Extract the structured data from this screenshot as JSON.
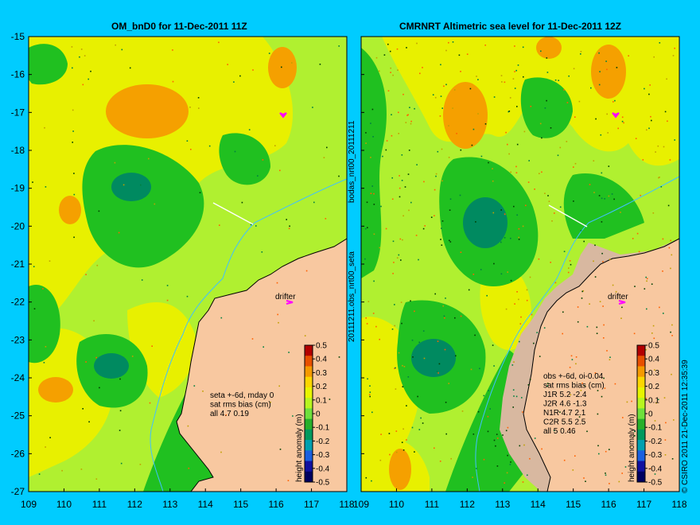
{
  "panels": [
    {
      "title": "OM_bnD0 for 11-Dec-2011 11Z",
      "annotation_lines": [
        "seta +-6d, mday 0",
        "sat rms bias (cm)",
        "all 4.7 0.19"
      ],
      "drifter_label": "drifter"
    },
    {
      "title": "CMRNRT Altimetric sea level  for 11-Dec-2011 12Z",
      "annotation_lines": [
        "obs +-6d, oi-0.04",
        "sat rms bias (cm)",
        "J1R  5.2 -2.4",
        "J2R  4.6 -1.3",
        "N1R  4.7 2.1",
        "C2R  5.5 2.5",
        "all 5 0.46"
      ],
      "drifter_label": "drifter"
    }
  ],
  "side_labels": {
    "middle_top": "bodas_nrt00_20111211",
    "middle_bottom": "20111211.obs_nrt00_seta",
    "right": "© CSIRO 2011  21-Dec-2011 12:35:39"
  },
  "axes": {
    "lat_ticks": [
      "-15",
      "-16",
      "-17",
      "-18",
      "-19",
      "-20",
      "-21",
      "-22",
      "-23",
      "-24",
      "-25",
      "-26",
      "-27"
    ],
    "lon_ticks": [
      "109",
      "110",
      "111",
      "112",
      "113",
      "114",
      "115",
      "116",
      "117",
      "118"
    ]
  },
  "colorbar": {
    "label": "height anomaly (m)",
    "ticks": [
      "0.5",
      "0.4",
      "0.3",
      "0.2",
      "0.1",
      "0",
      "-0.1",
      "-0.2",
      "-0.3",
      "-0.4",
      "-0.5"
    ],
    "colors": [
      "#b30000",
      "#e85000",
      "#f59a00",
      "#fcd600",
      "#e8f500",
      "#b8f520",
      "#6ee03c",
      "#27b02a",
      "#009a5e",
      "#00a0b0",
      "#1a60e0",
      "#1010a0",
      "#000060"
    ]
  },
  "colors": {
    "background": "#00ccff",
    "land": "#f8c8a0",
    "contour_high": "#f5a000",
    "contour_mid": "#e8f000",
    "contour_base": "#b0f030",
    "contour_low": "#20c020",
    "contour_deep": "#008a60",
    "drifter": "#ff00ff"
  }
}
